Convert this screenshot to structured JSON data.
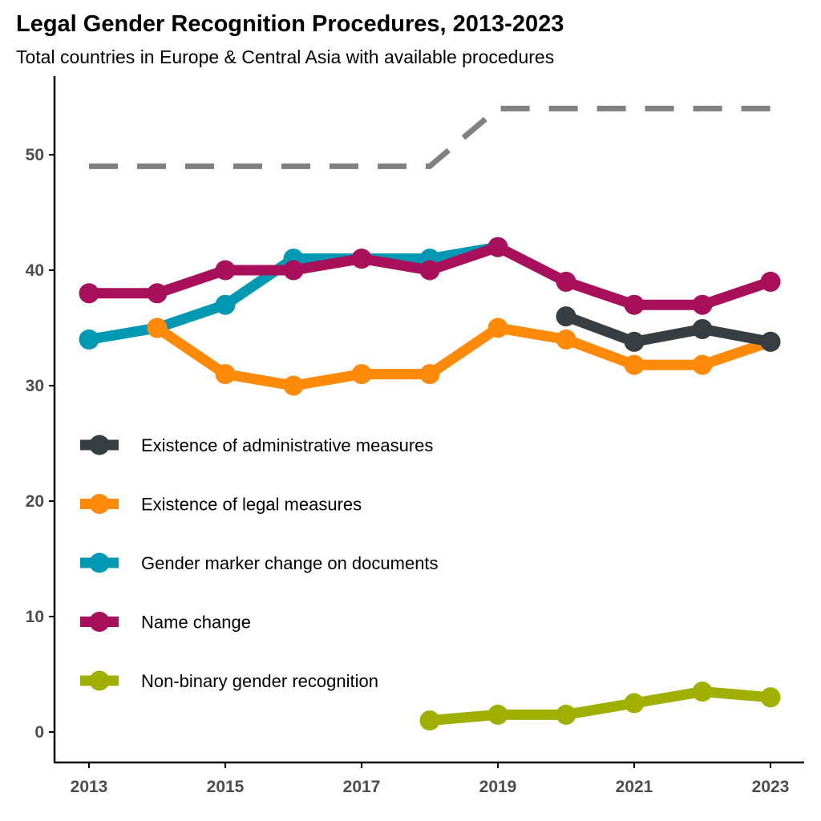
{
  "chart_data": {
    "type": "line",
    "title": "Legal Gender Recognition Procedures, 2013-2023",
    "subtitle": "Total countries in Europe & Central Asia with available procedures",
    "xlabel": "",
    "ylabel": "",
    "x": [
      2013,
      2014,
      2015,
      2016,
      2017,
      2018,
      2019,
      2020,
      2021,
      2022,
      2023
    ],
    "x_ticks": [
      "2013",
      "2015",
      "2017",
      "2019",
      "2021",
      "2023"
    ],
    "y_ticks": [
      "0",
      "10",
      "20",
      "30",
      "40",
      "50"
    ],
    "xlim": [
      2012.5,
      2023.5
    ],
    "ylim": [
      -2.5,
      57
    ],
    "grid": false,
    "legend_position": "left-middle",
    "reference_line": {
      "style": "dashed",
      "color": "#808080",
      "values": [
        49,
        49,
        49,
        49,
        49,
        49,
        54,
        54,
        54,
        54,
        54
      ]
    },
    "series": [
      {
        "name": "Existence of administrative measures",
        "color": "#373e43",
        "values": [
          null,
          null,
          null,
          null,
          null,
          null,
          null,
          36,
          33.8,
          34.9,
          33.8
        ]
      },
      {
        "name": "Existence of legal measures",
        "color": "#ff8a0a",
        "values": [
          null,
          35,
          31,
          30,
          31,
          31,
          35,
          34,
          31.8,
          31.8,
          33.8
        ]
      },
      {
        "name": "Gender marker change on documents",
        "color": "#0098b3",
        "values": [
          34,
          35,
          37,
          41,
          41,
          41,
          42,
          null,
          null,
          null,
          null
        ]
      },
      {
        "name": "Name change",
        "color": "#a8105c",
        "values": [
          38,
          38,
          40,
          40,
          41,
          40,
          42,
          39,
          37,
          37,
          39
        ]
      },
      {
        "name": "Non-binary gender recognition",
        "color": "#9fb003",
        "values": [
          null,
          null,
          null,
          null,
          null,
          1,
          1.5,
          1.5,
          2.5,
          3.5,
          3
        ]
      }
    ]
  }
}
